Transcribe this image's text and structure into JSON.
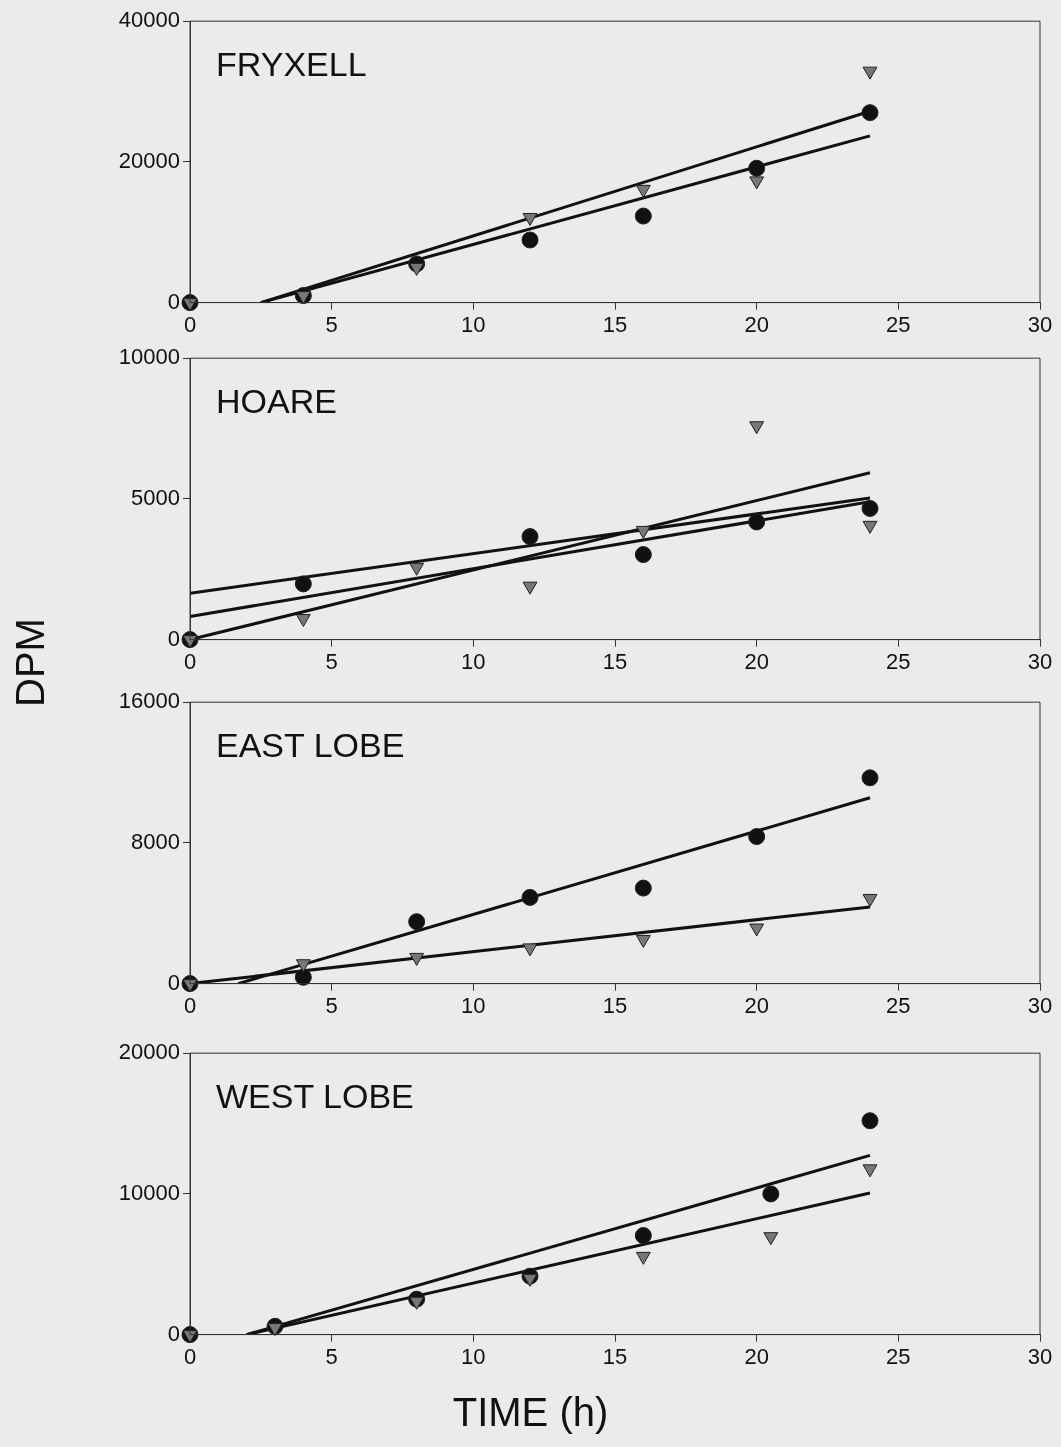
{
  "chart_data": [
    {
      "type": "scatter",
      "title": "FRYXELL",
      "xlim": [
        0,
        30
      ],
      "xticks": [
        0,
        5,
        10,
        15,
        20,
        25,
        30
      ],
      "ylim": [
        0,
        40000
      ],
      "yticks": [
        0,
        20000,
        40000
      ],
      "grid": false,
      "legend": false,
      "series": [
        {
          "type": "scatter",
          "marker": "circle",
          "color": "#111111",
          "x": [
            0,
            4,
            8,
            12,
            16,
            20,
            24
          ],
          "values": [
            0,
            1000,
            5500,
            8900,
            12300,
            19100,
            27000
          ]
        },
        {
          "type": "scatter",
          "marker": "triangle",
          "color": "#777777",
          "x": [
            0,
            4,
            8,
            12,
            16,
            20,
            24
          ],
          "values": [
            0,
            1000,
            5000,
            12100,
            16100,
            17300,
            32900
          ]
        },
        {
          "type": "line",
          "marker": "none",
          "color": "#111111",
          "x": [
            2.5,
            24
          ],
          "values": [
            0,
            27200
          ]
        },
        {
          "type": "line",
          "marker": "none",
          "color": "#111111",
          "x": [
            2.5,
            24
          ],
          "values": [
            0,
            23700
          ]
        }
      ]
    },
    {
      "type": "scatter",
      "title": "HOARE",
      "ylabel": "DPM",
      "xlim": [
        0,
        30
      ],
      "xticks": [
        0,
        5,
        10,
        15,
        20,
        25,
        30
      ],
      "ylim": [
        0,
        10000
      ],
      "yticks": [
        0,
        5000,
        10000
      ],
      "grid": false,
      "legend": false,
      "series": [
        {
          "type": "scatter",
          "marker": "circle",
          "color": "#111111",
          "x": [
            0,
            4,
            12,
            16,
            20,
            24
          ],
          "values": [
            0,
            1980,
            3660,
            3020,
            4180,
            4660
          ]
        },
        {
          "type": "scatter",
          "marker": "triangle",
          "color": "#777777",
          "x": [
            0,
            4,
            8,
            12,
            16,
            20,
            24
          ],
          "values": [
            0,
            750,
            2570,
            1900,
            3880,
            7600,
            4060
          ]
        },
        {
          "type": "line",
          "marker": "none",
          "color": "#111111",
          "x": [
            0,
            24
          ],
          "values": [
            1650,
            5030
          ]
        },
        {
          "type": "line",
          "marker": "none",
          "color": "#111111",
          "x": [
            0,
            24
          ],
          "values": [
            820,
            4900
          ]
        },
        {
          "type": "line",
          "marker": "none",
          "color": "#111111",
          "x": [
            0,
            24
          ],
          "values": [
            0,
            5930
          ]
        }
      ]
    },
    {
      "type": "scatter",
      "title": "EAST LOBE",
      "xlim": [
        0,
        30
      ],
      "xticks": [
        0,
        5,
        10,
        15,
        20,
        25,
        30
      ],
      "ylim": [
        0,
        16000
      ],
      "yticks": [
        0,
        8000,
        16000
      ],
      "grid": false,
      "legend": false,
      "series": [
        {
          "type": "scatter",
          "marker": "circle",
          "color": "#111111",
          "x": [
            0,
            4,
            8,
            12,
            16,
            20,
            24
          ],
          "values": [
            0,
            360,
            3520,
            4900,
            5430,
            8360,
            11700
          ]
        },
        {
          "type": "scatter",
          "marker": "triangle",
          "color": "#777777",
          "x": [
            0,
            4,
            8,
            12,
            16,
            20,
            24
          ],
          "values": [
            0,
            1130,
            1490,
            2030,
            2510,
            3160,
            4840
          ]
        },
        {
          "type": "line",
          "marker": "none",
          "color": "#111111",
          "x": [
            1.7,
            24
          ],
          "values": [
            0,
            10570
          ]
        },
        {
          "type": "line",
          "marker": "none",
          "color": "#111111",
          "x": [
            0,
            24
          ],
          "values": [
            0,
            4360
          ]
        }
      ]
    },
    {
      "type": "scatter",
      "title": "WEST LOBE",
      "xlabel": "TIME (h)",
      "xlim": [
        0,
        30
      ],
      "xticks": [
        0,
        5,
        10,
        15,
        20,
        25,
        30
      ],
      "ylim": [
        0,
        20000
      ],
      "yticks": [
        0,
        10000,
        20000
      ],
      "grid": false,
      "legend": false,
      "series": [
        {
          "type": "scatter",
          "marker": "circle",
          "color": "#111111",
          "x": [
            0,
            3,
            8,
            12,
            16,
            20.5,
            24
          ],
          "values": [
            0,
            590,
            2520,
            4150,
            7040,
            10000,
            15200
          ]
        },
        {
          "type": "scatter",
          "marker": "triangle",
          "color": "#777777",
          "x": [
            0,
            3,
            8,
            12,
            16,
            20.5,
            24
          ],
          "values": [
            0,
            500,
            2370,
            4000,
            5560,
            6960,
            11780
          ]
        },
        {
          "type": "line",
          "marker": "none",
          "color": "#111111",
          "x": [
            2,
            24
          ],
          "values": [
            0,
            12740
          ]
        },
        {
          "type": "line",
          "marker": "none",
          "color": "#111111",
          "x": [
            2,
            24
          ],
          "values": [
            0,
            10070
          ]
        }
      ]
    }
  ]
}
